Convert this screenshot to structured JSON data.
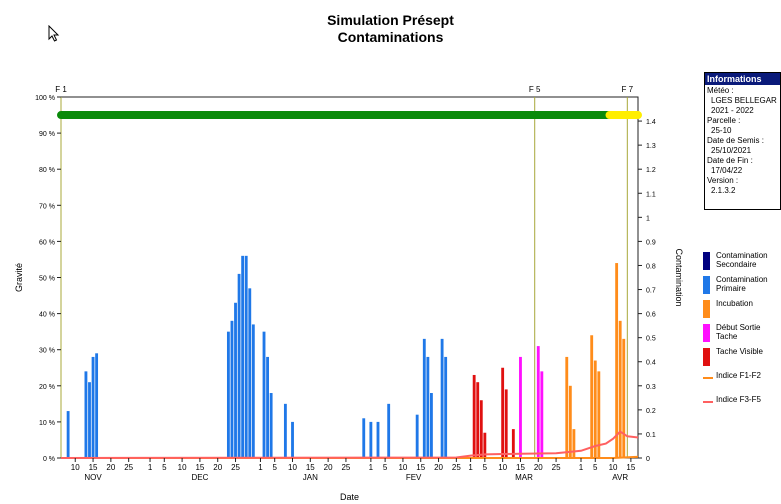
{
  "title": "Simulation Présept",
  "subtitle": "Contaminations",
  "info": {
    "header": "Informations",
    "lines": [
      {
        "label": "Météo :",
        "value": "LGES BELLEGAR"
      },
      {
        "label": "",
        "value": "2021 - 2022"
      },
      {
        "label": "Parcelle :",
        "value": "25-10"
      },
      {
        "label": "Date de Semis :",
        "value": "25/10/2021"
      },
      {
        "label": "Date de Fin :",
        "value": "17/04/22"
      },
      {
        "label": "Version :",
        "value": "2.1.3.2"
      }
    ]
  },
  "legend": [
    {
      "label": "Contamination Secondaire",
      "color": "#000080",
      "kind": "box"
    },
    {
      "label": "Contamination Primaire",
      "color": "#1f78e8",
      "kind": "box"
    },
    {
      "label": "Incubation",
      "color": "#ff8c1a",
      "kind": "box"
    },
    {
      "label": "Début Sortie Tache",
      "color": "#ff10ff",
      "kind": "box"
    },
    {
      "label": "Tache Visible",
      "color": "#e01010",
      "kind": "box"
    },
    {
      "label": "Indice F1-F2",
      "color": "#ff8c1a",
      "kind": "line"
    },
    {
      "label": "Indice F3-F5",
      "color": "#ff6060",
      "kind": "line"
    }
  ],
  "chart_data": {
    "type": "bar",
    "x_start": "2021-11-06",
    "x_end": "2022-04-17",
    "ylabel": "Gravité",
    "y2label": "Contamination",
    "xlabel": "Date",
    "ylim": [
      0,
      100
    ],
    "y2lim": [
      0,
      1.5
    ],
    "y_ticks": [
      0,
      10,
      20,
      30,
      40,
      50,
      60,
      70,
      80,
      90,
      100
    ],
    "y_tick_labels": [
      "0 %",
      "10 %",
      "20 %",
      "30 %",
      "40 %",
      "50 %",
      "60 %",
      "70 %",
      "80 %",
      "90 %",
      "100 %"
    ],
    "y2_ticks": [
      0,
      0.1,
      0.2,
      0.3,
      0.4,
      0.5,
      0.6,
      0.7,
      0.8,
      0.9,
      1,
      1.1,
      1.2,
      1.3,
      1.4
    ],
    "x_day_ticks": [
      {
        "date": "2021-11-10",
        "label": "10"
      },
      {
        "date": "2021-11-15",
        "label": "15"
      },
      {
        "date": "2021-11-20",
        "label": "20"
      },
      {
        "date": "2021-11-25",
        "label": "25"
      },
      {
        "date": "2021-12-01",
        "label": "1"
      },
      {
        "date": "2021-12-05",
        "label": "5"
      },
      {
        "date": "2021-12-10",
        "label": "10"
      },
      {
        "date": "2021-12-15",
        "label": "15"
      },
      {
        "date": "2021-12-20",
        "label": "20"
      },
      {
        "date": "2021-12-25",
        "label": "25"
      },
      {
        "date": "2022-01-01",
        "label": "1"
      },
      {
        "date": "2022-01-05",
        "label": "5"
      },
      {
        "date": "2022-01-10",
        "label": "10"
      },
      {
        "date": "2022-01-15",
        "label": "15"
      },
      {
        "date": "2022-01-20",
        "label": "20"
      },
      {
        "date": "2022-01-25",
        "label": "25"
      },
      {
        "date": "2022-02-01",
        "label": "1"
      },
      {
        "date": "2022-02-05",
        "label": "5"
      },
      {
        "date": "2022-02-10",
        "label": "10"
      },
      {
        "date": "2022-02-15",
        "label": "15"
      },
      {
        "date": "2022-02-20",
        "label": "20"
      },
      {
        "date": "2022-02-25",
        "label": "25"
      },
      {
        "date": "2022-03-01",
        "label": "1"
      },
      {
        "date": "2022-03-05",
        "label": "5"
      },
      {
        "date": "2022-03-10",
        "label": "10"
      },
      {
        "date": "2022-03-15",
        "label": "15"
      },
      {
        "date": "2022-03-20",
        "label": "20"
      },
      {
        "date": "2022-03-25",
        "label": "25"
      },
      {
        "date": "2022-04-01",
        "label": "1"
      },
      {
        "date": "2022-04-05",
        "label": "5"
      },
      {
        "date": "2022-04-10",
        "label": "10"
      },
      {
        "date": "2022-04-15",
        "label": "15"
      }
    ],
    "months": [
      {
        "label": "NOV",
        "date": "2021-11-15"
      },
      {
        "label": "DEC",
        "date": "2021-12-15"
      },
      {
        "label": "JAN",
        "date": "2022-01-15"
      },
      {
        "label": "FEV",
        "date": "2022-02-13"
      },
      {
        "label": "MAR",
        "date": "2022-03-16"
      },
      {
        "label": "AVR",
        "date": "2022-04-12"
      }
    ],
    "stages": [
      {
        "label": "F 1",
        "date": "2021-11-06"
      },
      {
        "label": "F 5",
        "date": "2022-03-19"
      },
      {
        "label": "F 7",
        "date": "2022-04-14"
      }
    ],
    "stage_bar": {
      "value": 95,
      "green_start": "2021-11-06",
      "green_end": "2022-04-09",
      "yellow_end": "2022-04-17"
    },
    "series": [
      {
        "name": "Contamination Primaire",
        "color": "#1f78e8",
        "points": [
          [
            "2021-11-08",
            13
          ],
          [
            "2021-11-13",
            24
          ],
          [
            "2021-11-14",
            21
          ],
          [
            "2021-11-15",
            28
          ],
          [
            "2021-11-16",
            29
          ],
          [
            "2021-12-23",
            35
          ],
          [
            "2021-12-24",
            38
          ],
          [
            "2021-12-25",
            43
          ],
          [
            "2021-12-26",
            51
          ],
          [
            "2021-12-27",
            56
          ],
          [
            "2021-12-28",
            56
          ],
          [
            "2021-12-29",
            47
          ],
          [
            "2021-12-30",
            37
          ],
          [
            "2022-01-02",
            35
          ],
          [
            "2022-01-03",
            28
          ],
          [
            "2022-01-04",
            18
          ],
          [
            "2022-01-08",
            15
          ],
          [
            "2022-01-10",
            10
          ],
          [
            "2022-01-30",
            11
          ],
          [
            "2022-02-01",
            10
          ],
          [
            "2022-02-03",
            10
          ],
          [
            "2022-02-06",
            15
          ],
          [
            "2022-02-14",
            12
          ],
          [
            "2022-02-16",
            33
          ],
          [
            "2022-02-17",
            28
          ],
          [
            "2022-02-18",
            18
          ],
          [
            "2022-02-21",
            33
          ],
          [
            "2022-02-22",
            28
          ]
        ]
      },
      {
        "name": "Tache Visible",
        "color": "#e01010",
        "points": [
          [
            "2022-03-02",
            23
          ],
          [
            "2022-03-03",
            21
          ],
          [
            "2022-03-04",
            16
          ],
          [
            "2022-03-05",
            7
          ],
          [
            "2022-03-10",
            25
          ],
          [
            "2022-03-11",
            19
          ],
          [
            "2022-03-13",
            8
          ]
        ]
      },
      {
        "name": "Début Sortie Tache",
        "color": "#ff10ff",
        "points": [
          [
            "2022-03-15",
            28
          ],
          [
            "2022-03-20",
            31
          ],
          [
            "2022-03-21",
            24
          ]
        ]
      },
      {
        "name": "Incubation",
        "color": "#ff8c1a",
        "points": [
          [
            "2022-03-28",
            28
          ],
          [
            "2022-03-29",
            20
          ],
          [
            "2022-03-30",
            8
          ],
          [
            "2022-04-04",
            34
          ],
          [
            "2022-04-05",
            27
          ],
          [
            "2022-04-06",
            24
          ],
          [
            "2022-04-11",
            54
          ],
          [
            "2022-04-12",
            38
          ],
          [
            "2022-04-13",
            33
          ]
        ]
      }
    ],
    "lines": [
      {
        "name": "Indice F1-F2",
        "color": "#ff8c1a",
        "points": [
          [
            "2021-11-06",
            0
          ],
          [
            "2022-04-10",
            0
          ],
          [
            "2022-04-17",
            0.005
          ]
        ]
      },
      {
        "name": "Indice F3-F5",
        "color": "#ff6060",
        "points": [
          [
            "2021-11-06",
            0
          ],
          [
            "2022-02-25",
            0.002
          ],
          [
            "2022-03-01",
            0.01
          ],
          [
            "2022-03-05",
            0.015
          ],
          [
            "2022-03-15",
            0.018
          ],
          [
            "2022-03-25",
            0.02
          ],
          [
            "2022-04-01",
            0.03
          ],
          [
            "2022-04-05",
            0.05
          ],
          [
            "2022-04-08",
            0.06
          ],
          [
            "2022-04-10",
            0.08
          ],
          [
            "2022-04-12",
            0.11
          ],
          [
            "2022-04-14",
            0.09
          ],
          [
            "2022-04-17",
            0.085
          ]
        ]
      }
    ]
  }
}
